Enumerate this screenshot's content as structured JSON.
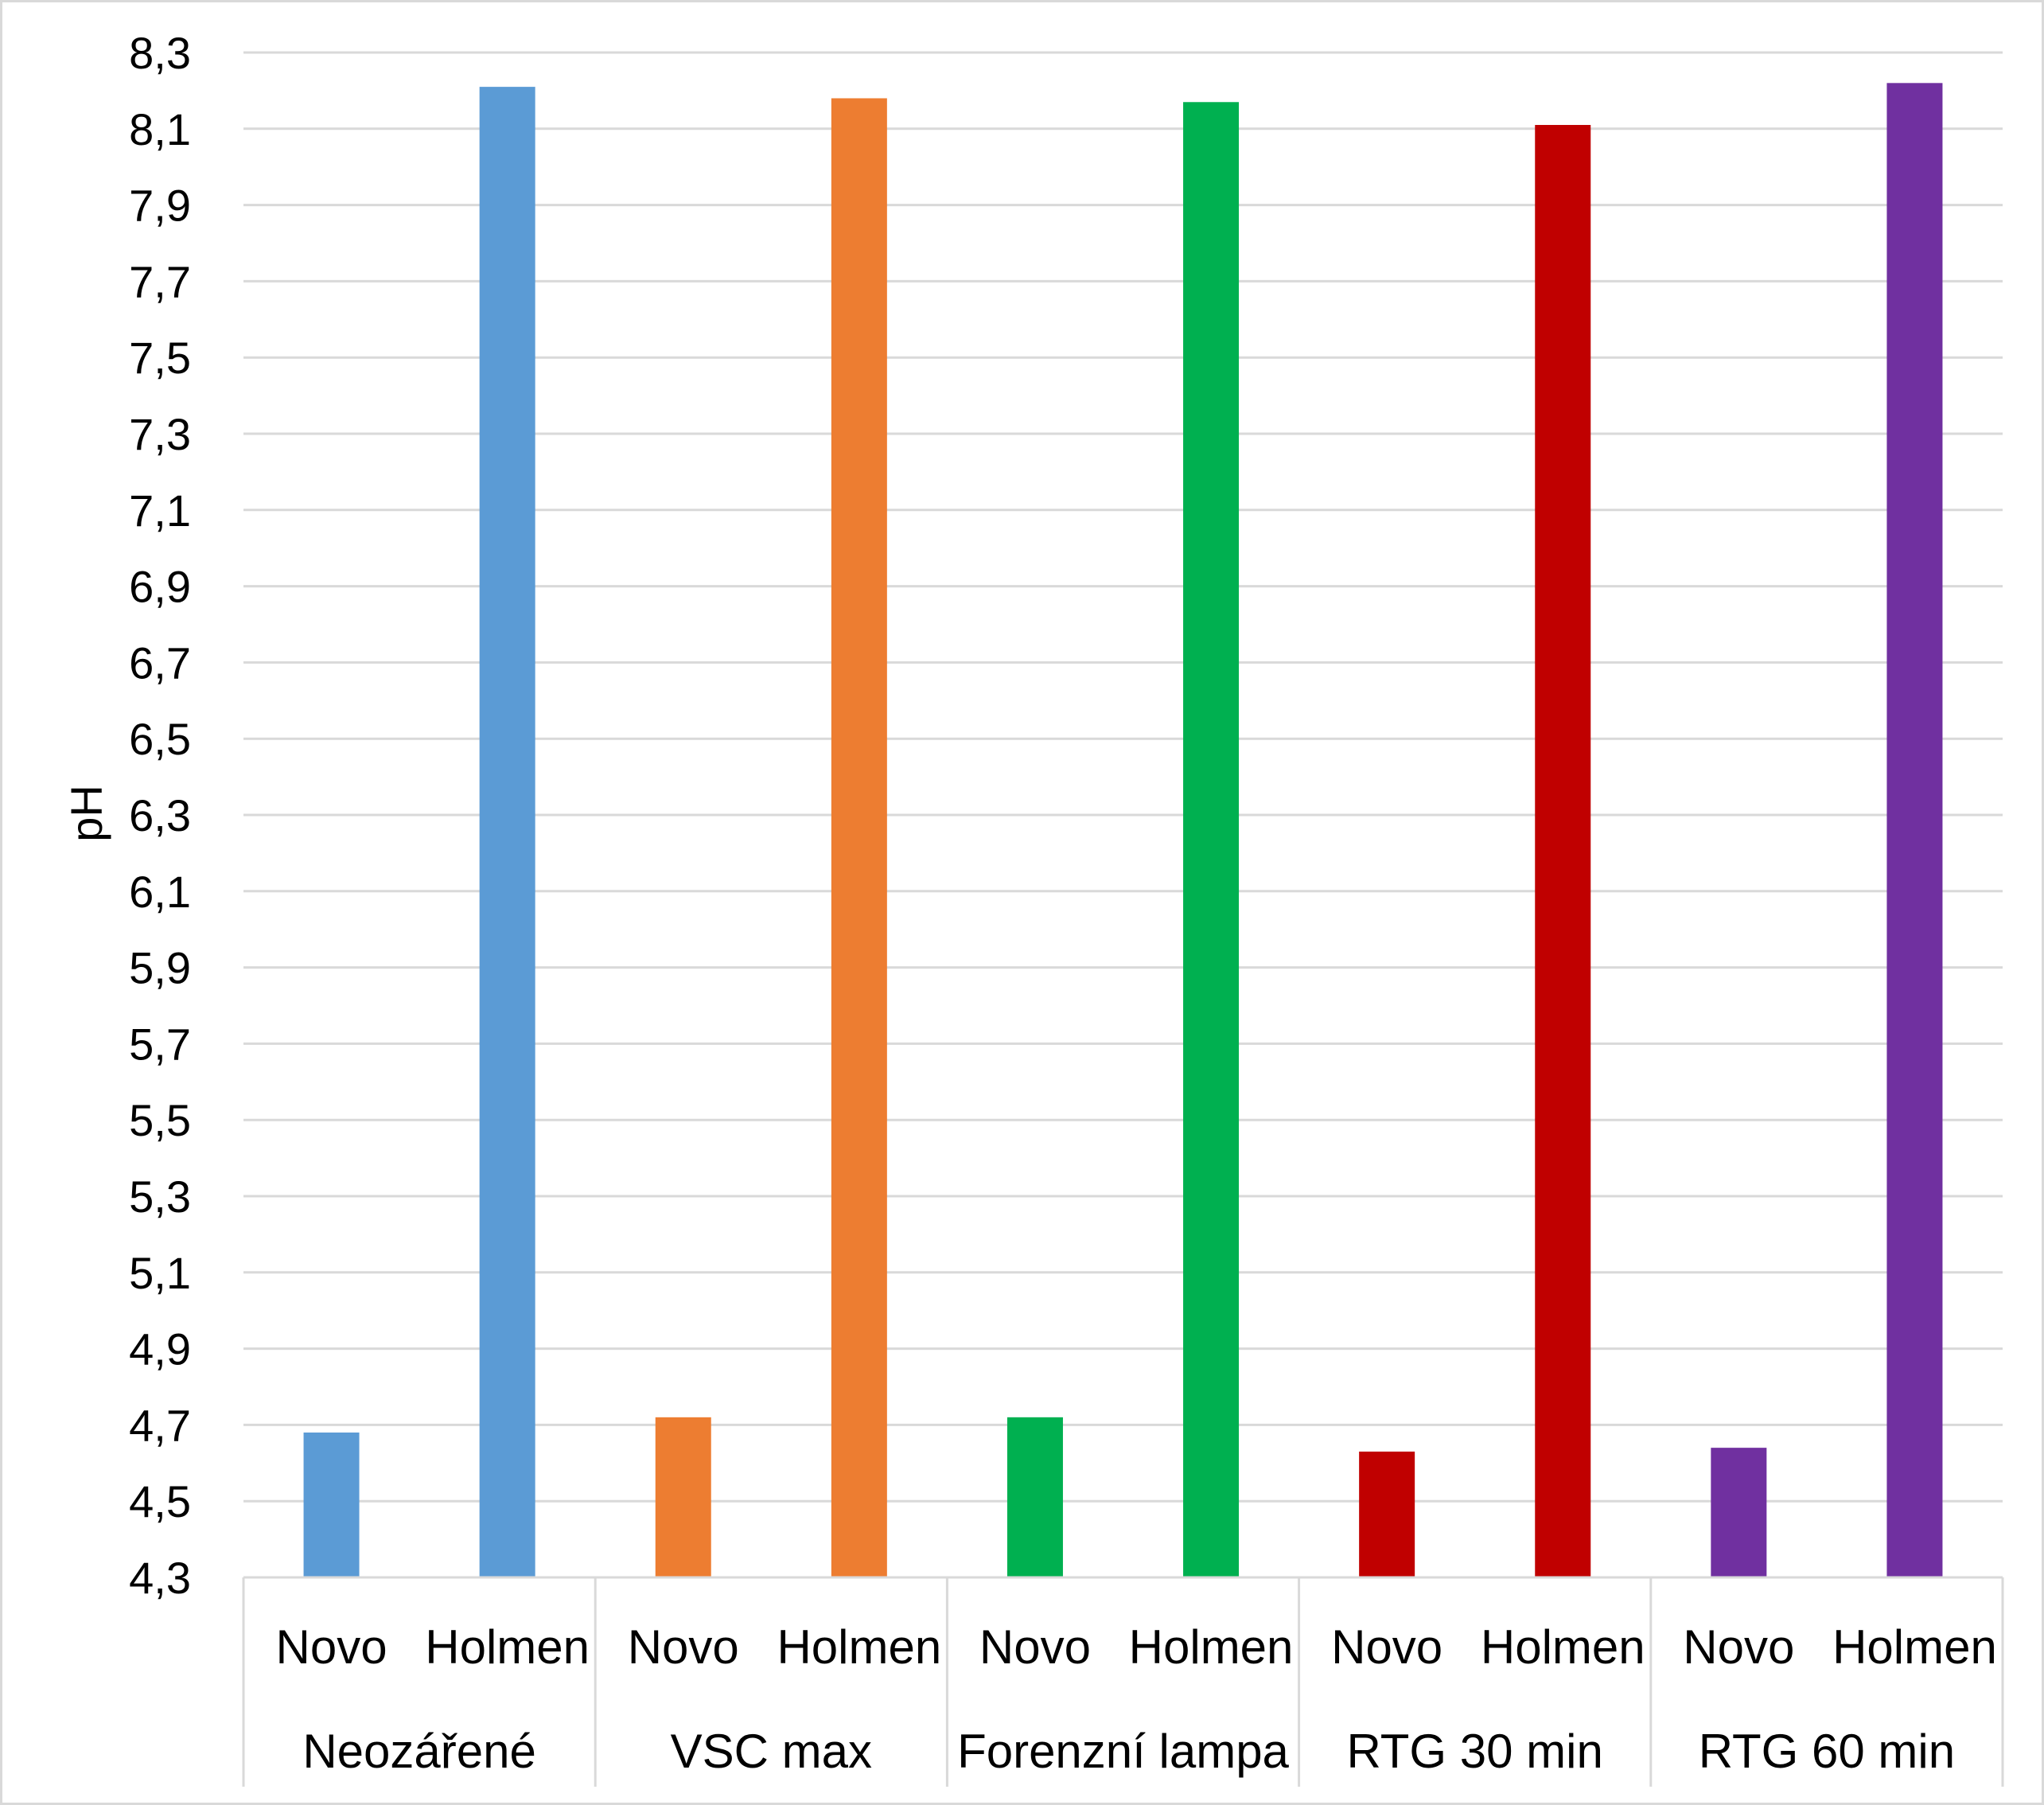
{
  "chart_data": {
    "type": "bar",
    "ylabel": "pH",
    "ylim": [
      4.3,
      8.3
    ],
    "yticks": [
      "4,3",
      "4,5",
      "4,7",
      "4,9",
      "5,1",
      "5,3",
      "5,5",
      "5,7",
      "5,9",
      "6,1",
      "6,3",
      "6,5",
      "6,7",
      "6,9",
      "7,1",
      "7,3",
      "7,5",
      "7,7",
      "7,9",
      "8,1",
      "8,3"
    ],
    "grid": true,
    "legend": "none",
    "groups": [
      {
        "label": "Neozářené",
        "color": "#5B9BD5",
        "bars": [
          {
            "label": "Novo",
            "value": 4.68
          },
          {
            "label": "Holmen",
            "value": 8.21
          }
        ]
      },
      {
        "label": "VSC max",
        "color": "#ED7D31",
        "bars": [
          {
            "label": "Novo",
            "value": 4.72
          },
          {
            "label": "Holmen",
            "value": 8.18
          }
        ]
      },
      {
        "label": "Forenzní lampa",
        "color": "#00B050",
        "bars": [
          {
            "label": "Novo",
            "value": 4.72
          },
          {
            "label": "Holmen",
            "value": 8.17
          }
        ]
      },
      {
        "label": "RTG 30 min",
        "color": "#C00000",
        "bars": [
          {
            "label": "Novo",
            "value": 4.63
          },
          {
            "label": "Holmen",
            "value": 8.11
          }
        ]
      },
      {
        "label": "RTG 60 min",
        "color": "#7030A0",
        "bars": [
          {
            "label": "Novo",
            "value": 4.64
          },
          {
            "label": "Holmen",
            "value": 8.22
          }
        ]
      }
    ]
  }
}
